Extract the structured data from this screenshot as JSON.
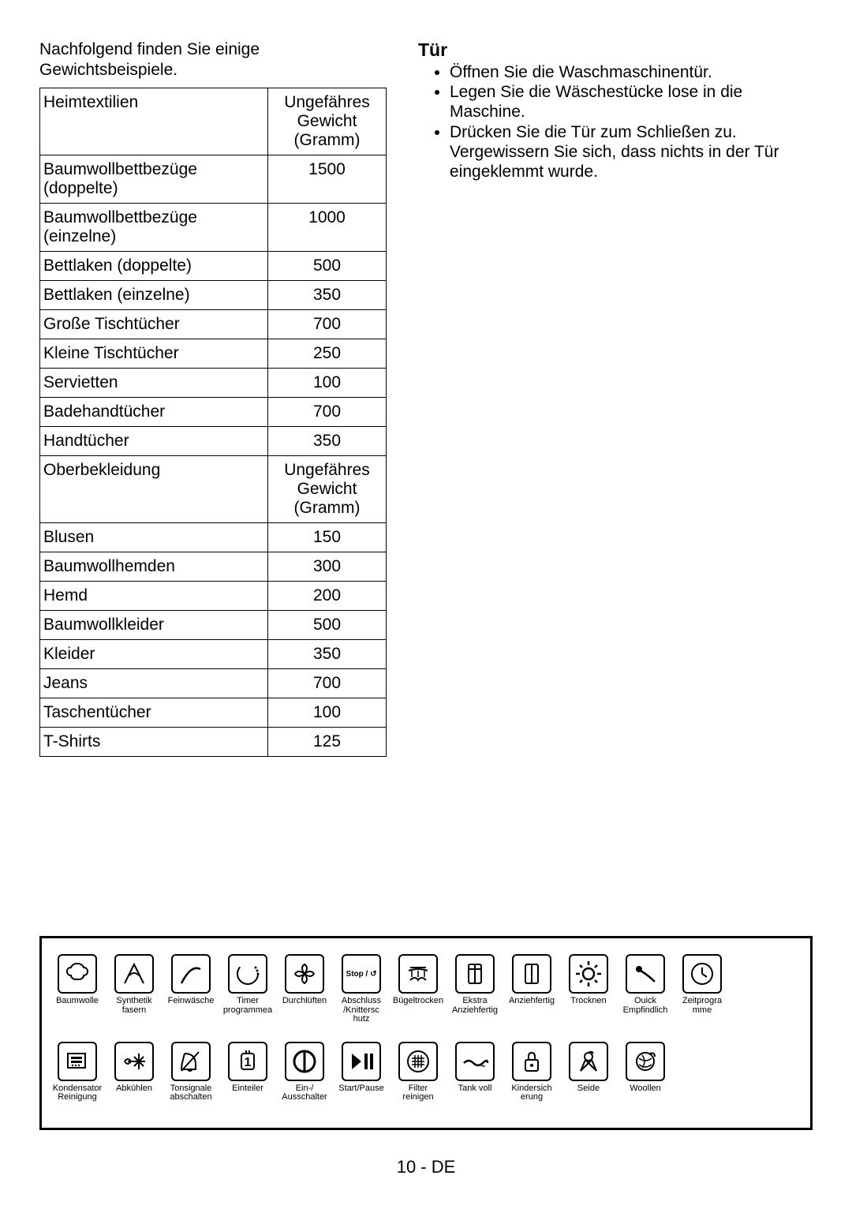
{
  "intro": "Nachfolgend finden Sie einige Gewichtsbeispiele.",
  "table": {
    "header1_col1": "Heimtextilien",
    "header1_col2": "Ungefähres\nGewicht\n(Gramm)",
    "rows1": [
      {
        "name": "Baumwollbettbezüge (doppelte)",
        "val": "1500"
      },
      {
        "name": "Baumwollbettbezüge (einzelne)",
        "val": "1000"
      },
      {
        "name": "Bettlaken (doppelte)",
        "val": "500"
      },
      {
        "name": "Bettlaken (einzelne)",
        "val": "350"
      },
      {
        "name": "Große Tischtücher",
        "val": "700"
      },
      {
        "name": "Kleine Tischtücher",
        "val": "250"
      },
      {
        "name": "Servietten",
        "val": "100"
      },
      {
        "name": "Badehandtücher",
        "val": "700"
      },
      {
        "name": "Handtücher",
        "val": "350"
      }
    ],
    "header2_col1": "Oberbekleidung",
    "header2_col2": "Ungefähres\nGewicht\n(Gramm)",
    "rows2": [
      {
        "name": "Blusen",
        "val": "150"
      },
      {
        "name": "Baumwollhemden",
        "val": "300"
      },
      {
        "name": "Hemd",
        "val": "200"
      },
      {
        "name": "Baumwollkleider",
        "val": "500"
      },
      {
        "name": "Kleider",
        "val": "350"
      },
      {
        "name": "Jeans",
        "val": "700"
      },
      {
        "name": "Taschentücher",
        "val": "100"
      },
      {
        "name": "T-Shirts",
        "val": "125"
      }
    ]
  },
  "door": {
    "title": "Tür",
    "items": [
      "Öffnen Sie die Waschmaschinentür.",
      "Legen Sie die Wäschestücke lose in die Maschine.",
      "Drücken Sie die Tür zum Schließen zu. Vergewissern Sie sich, dass nichts in der Tür eingeklemmt wurde."
    ]
  },
  "icons_row1": [
    {
      "key": "cotton",
      "label": "Baumwolle"
    },
    {
      "key": "synthetic",
      "label": "Synthetik fasern"
    },
    {
      "key": "delicate",
      "label": "Feinwäsche"
    },
    {
      "key": "timer",
      "label": "Timer programmea"
    },
    {
      "key": "airing",
      "label": "Durchlüften"
    },
    {
      "key": "stop",
      "label": "Abschluss /Knittersc hutz",
      "text": "Stop / ↺"
    },
    {
      "key": "irondrv",
      "label": "Bügeltrocken"
    },
    {
      "key": "extra",
      "label": "Ekstra Anziehfertig"
    },
    {
      "key": "ready",
      "label": "Anziehfertig"
    },
    {
      "key": "dry",
      "label": "Trocknen"
    },
    {
      "key": "quick",
      "label": "Ouick Empfindlich"
    },
    {
      "key": "timeprog",
      "label": "Zeitprogra mme"
    }
  ],
  "icons_row2": [
    {
      "key": "condenser",
      "label": "Kondensator Reinigung"
    },
    {
      "key": "cooldown",
      "label": "Abkühlen"
    },
    {
      "key": "buzzer",
      "label": "Tonsignale abschalten"
    },
    {
      "key": "divider",
      "label": "Einteiler"
    },
    {
      "key": "onoff",
      "label": "Ein-/ Ausschalter"
    },
    {
      "key": "startpause",
      "label": "Start/Pause"
    },
    {
      "key": "filter",
      "label": "Filter reinigen"
    },
    {
      "key": "tankfull",
      "label": "Tank voll"
    },
    {
      "key": "childlock",
      "label": "Kindersich erung"
    },
    {
      "key": "silk",
      "label": "Seide"
    },
    {
      "key": "woollen",
      "label": "Woollen"
    }
  ],
  "page_number": "10 - DE",
  "colors": {
    "text": "#000000",
    "background": "#ffffff",
    "border": "#000000"
  }
}
